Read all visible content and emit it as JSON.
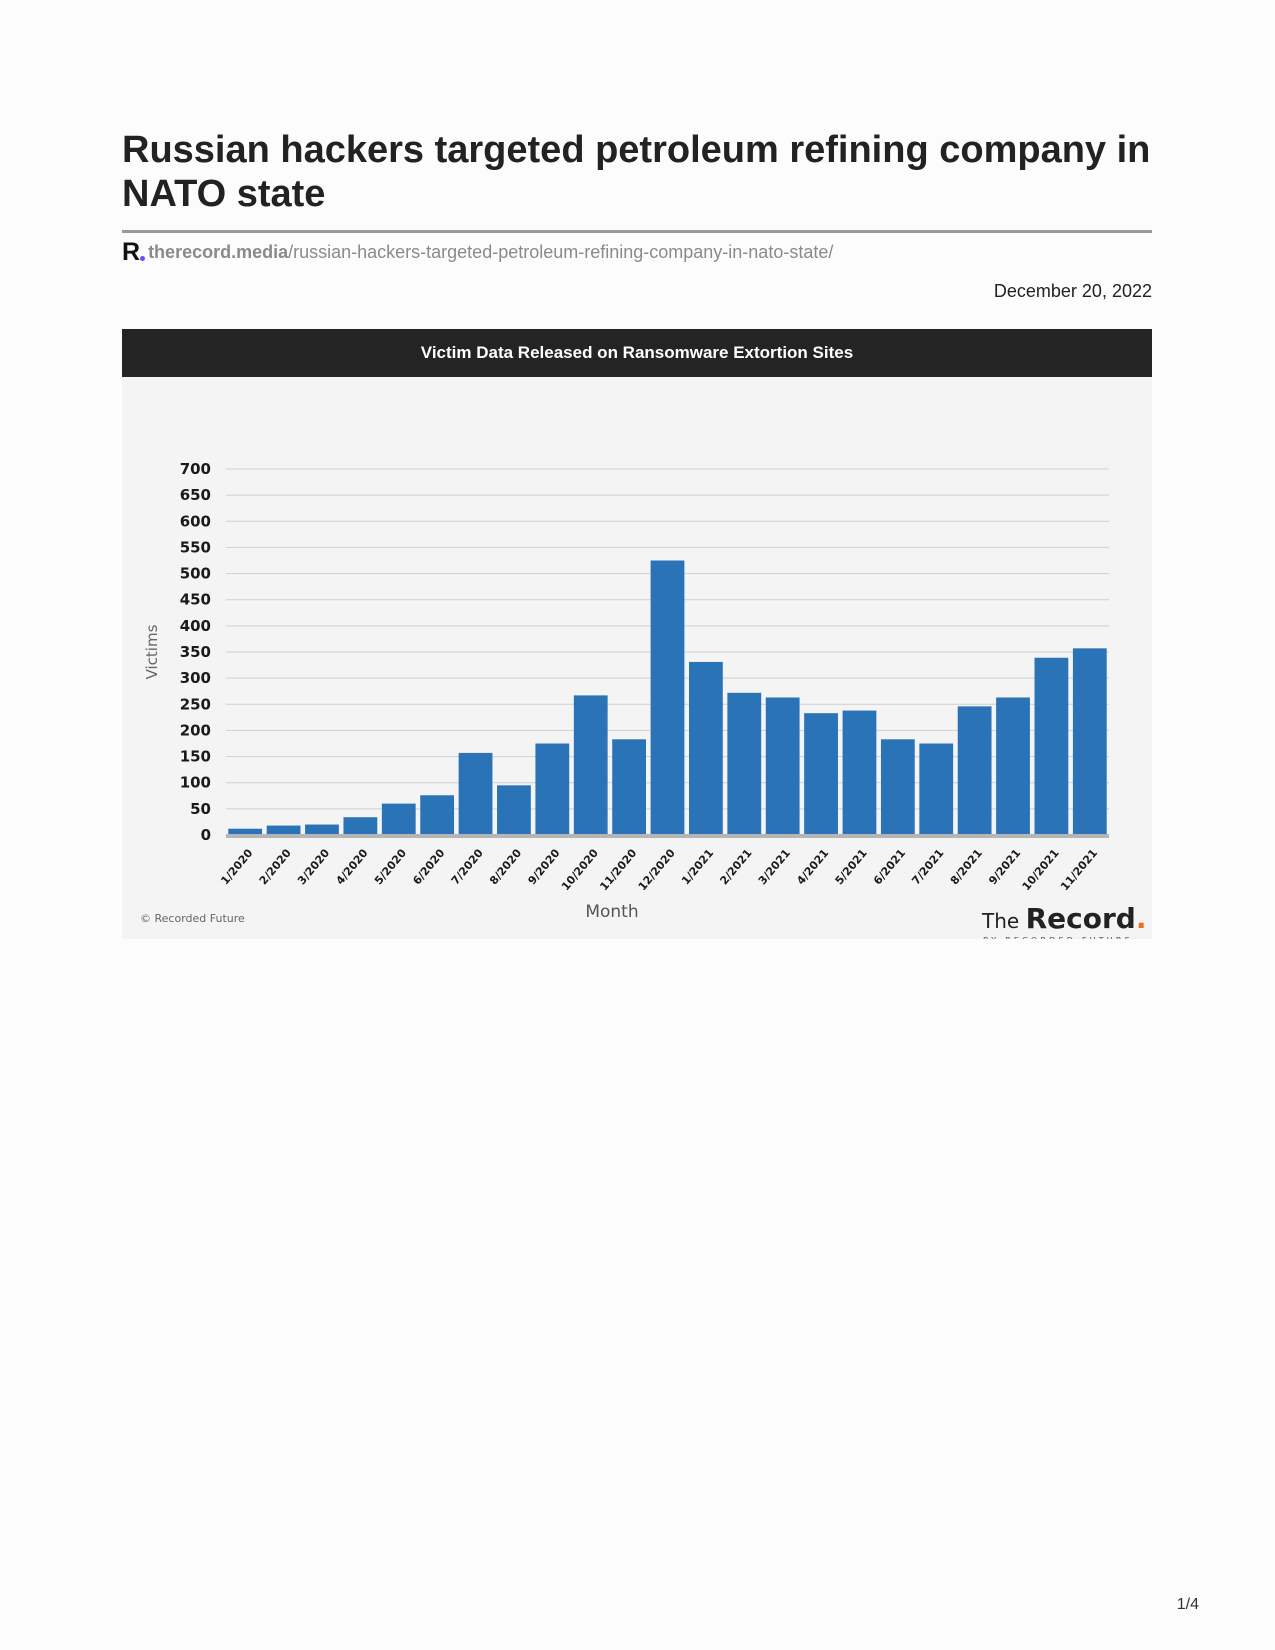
{
  "article": {
    "title": "Russian hackers targeted petroleum refining company in NATO state",
    "source_domain": "therecord.media",
    "source_path": "/russian-hackers-targeted-petroleum-refining-company-in-nato-state/",
    "date": "December 20, 2022",
    "logo_letter": "R"
  },
  "chart_data": {
    "type": "bar",
    "title": "Victim Data Released on Ransomware Extortion Sites",
    "xlabel": "Month",
    "ylabel": "Victims",
    "ylim": [
      0,
      700
    ],
    "yticks": [
      0,
      50,
      100,
      150,
      200,
      250,
      300,
      350,
      400,
      450,
      500,
      550,
      600,
      650,
      700
    ],
    "grid": true,
    "bar_color": "#2a73b6",
    "categories": [
      "1/2020",
      "2/2020",
      "3/2020",
      "4/2020",
      "5/2020",
      "6/2020",
      "7/2020",
      "8/2020",
      "9/2020",
      "10/2020",
      "11/2020",
      "12/2020",
      "1/2021",
      "2/2021",
      "3/2021",
      "4/2021",
      "5/2021",
      "6/2021",
      "7/2021",
      "8/2021",
      "9/2021",
      "10/2021",
      "11/2021"
    ],
    "values": [
      12,
      18,
      20,
      34,
      60,
      76,
      157,
      95,
      175,
      267,
      183,
      525,
      331,
      272,
      263,
      233,
      238,
      183,
      175,
      246,
      263,
      339,
      357
    ],
    "copyright": "© Recorded Future",
    "brand": {
      "the": "The",
      "name": "Record",
      "dot": ".",
      "tagline": "BY RECORDED FUTURE",
      "dot_color": "#f26b1d"
    }
  },
  "footer": {
    "page": "1/4"
  }
}
